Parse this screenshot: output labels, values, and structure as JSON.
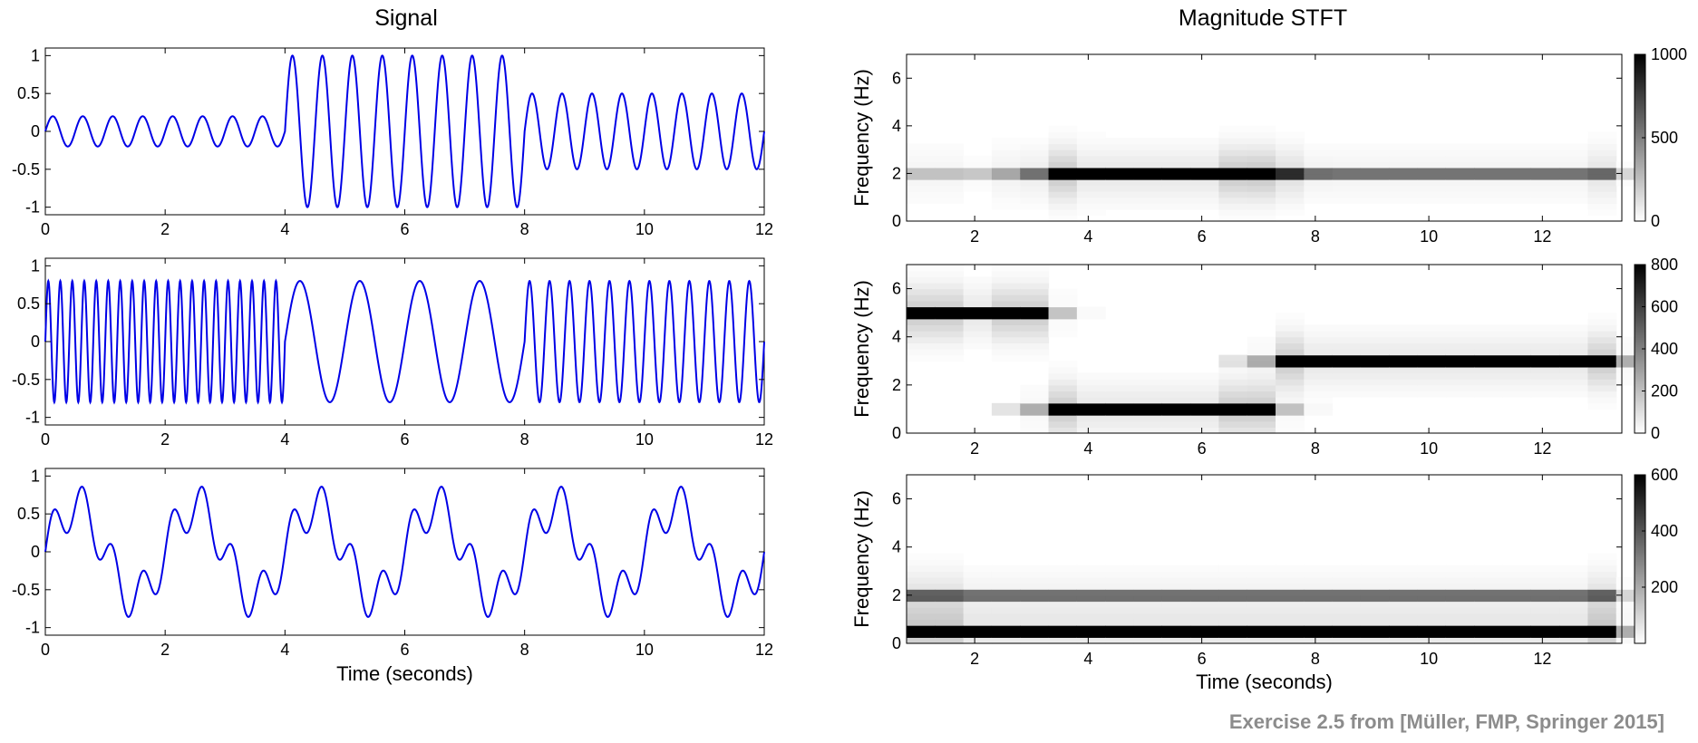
{
  "titles": {
    "signal": "Signal",
    "stft": "Magnitude STFT"
  },
  "credit": "Exercise 2.5 from [Müller, FMP, Springer 2015]",
  "colors": {
    "signal_line": "#0000e6",
    "axes": "#000000",
    "colormap": "gray_r"
  },
  "chart_data": [
    {
      "type": "line",
      "panel": "signal-1",
      "xlabel": "",
      "ylabel": "",
      "xlim": [
        0,
        12
      ],
      "ylim": [
        -1.1,
        1.1
      ],
      "xticks": [
        0,
        2,
        4,
        6,
        8,
        10,
        12
      ],
      "yticks": [
        1,
        0.5,
        0,
        -0.5,
        -1
      ],
      "xtick_labels": [
        "0",
        "2",
        "4",
        "6",
        "8",
        "10",
        "12"
      ],
      "ytick_labels": [
        "1",
        "0.5",
        "0",
        "-0.5",
        "-1"
      ],
      "segments": [
        {
          "t_start": 0,
          "t_end": 4,
          "amplitude": 0.2,
          "freq_hz": 2
        },
        {
          "t_start": 4,
          "t_end": 8,
          "amplitude": 1.0,
          "freq_hz": 2
        },
        {
          "t_start": 8,
          "t_end": 12,
          "amplitude": 0.5,
          "freq_hz": 2
        }
      ]
    },
    {
      "type": "line",
      "panel": "signal-2",
      "xlabel": "",
      "ylabel": "",
      "xlim": [
        0,
        12
      ],
      "ylim": [
        -1.1,
        1.1
      ],
      "xticks": [
        0,
        2,
        4,
        6,
        8,
        10,
        12
      ],
      "yticks": [
        1,
        0.5,
        0,
        -0.5,
        -1
      ],
      "xtick_labels": [
        "0",
        "2",
        "4",
        "6",
        "8",
        "10",
        "12"
      ],
      "ytick_labels": [
        "1",
        "0.5",
        "0",
        "-0.5",
        "-1"
      ],
      "segments": [
        {
          "t_start": 0,
          "t_end": 4,
          "amplitude": 0.8,
          "freq_hz": 5
        },
        {
          "t_start": 4,
          "t_end": 8,
          "amplitude": 0.8,
          "freq_hz": 1
        },
        {
          "t_start": 8,
          "t_end": 12,
          "amplitude": 0.8,
          "freq_hz": 3
        }
      ]
    },
    {
      "type": "line",
      "panel": "signal-3",
      "xlabel": "Time (seconds)",
      "ylabel": "",
      "xlim": [
        0,
        12
      ],
      "ylim": [
        -1.1,
        1.1
      ],
      "xticks": [
        0,
        2,
        4,
        6,
        8,
        10,
        12
      ],
      "yticks": [
        1,
        0.5,
        0,
        -0.5,
        -1
      ],
      "xtick_labels": [
        "0",
        "2",
        "4",
        "6",
        "8",
        "10",
        "12"
      ],
      "ytick_labels": [
        "1",
        "0.5",
        "0",
        "-0.5",
        "-1"
      ],
      "components": [
        {
          "amplitude": 0.6,
          "freq_hz": 0.5
        },
        {
          "amplitude": 0.3,
          "freq_hz": 2
        }
      ]
    },
    {
      "type": "heatmap",
      "panel": "stft-1",
      "xlabel": "",
      "ylabel": "Frequency (Hz)",
      "xlim": [
        0.8,
        13.4
      ],
      "ylim": [
        0,
        7
      ],
      "xticks": [
        2,
        4,
        6,
        8,
        10,
        12
      ],
      "yticks": [
        0,
        2,
        4,
        6
      ],
      "xtick_labels": [
        "2",
        "4",
        "6",
        "8",
        "10",
        "12"
      ],
      "ytick_labels": [
        "0",
        "2",
        "4",
        "6"
      ],
      "colorbar": {
        "max": 1000,
        "ticks": [
          0,
          500,
          1000
        ],
        "tick_labels": [
          "0",
          "500",
          "1000"
        ]
      },
      "peaks": [
        {
          "t_start": 0.8,
          "t_end": 3.2,
          "freq_hz": 2,
          "magnitude": 200
        },
        {
          "t_start": 3.2,
          "t_end": 7.2,
          "freq_hz": 2,
          "magnitude": 1000
        },
        {
          "t_start": 7.2,
          "t_end": 13.4,
          "freq_hz": 2,
          "magnitude": 500
        }
      ]
    },
    {
      "type": "heatmap",
      "panel": "stft-2",
      "xlabel": "",
      "ylabel": "Frequency (Hz)",
      "xlim": [
        0.8,
        13.4
      ],
      "ylim": [
        0,
        7
      ],
      "xticks": [
        2,
        4,
        6,
        8,
        10,
        12
      ],
      "yticks": [
        0,
        2,
        4,
        6
      ],
      "xtick_labels": [
        "2",
        "4",
        "6",
        "8",
        "10",
        "12"
      ],
      "ytick_labels": [
        "0",
        "2",
        "4",
        "6"
      ],
      "colorbar": {
        "max": 800,
        "ticks": [
          0,
          200,
          400,
          600,
          800
        ],
        "tick_labels": [
          "0",
          "200",
          "400",
          "600",
          "800"
        ]
      },
      "peaks": [
        {
          "t_start": 0.8,
          "t_end": 3.2,
          "freq_hz": 5,
          "magnitude": 800
        },
        {
          "t_start": 3.2,
          "t_end": 7.2,
          "freq_hz": 1,
          "magnitude": 800
        },
        {
          "t_start": 7.2,
          "t_end": 13.4,
          "freq_hz": 3,
          "magnitude": 800
        }
      ]
    },
    {
      "type": "heatmap",
      "panel": "stft-3",
      "xlabel": "Time (seconds)",
      "ylabel": "Frequency (Hz)",
      "xlim": [
        0.8,
        13.4
      ],
      "ylim": [
        0,
        7
      ],
      "xticks": [
        2,
        4,
        6,
        8,
        10,
        12
      ],
      "yticks": [
        0,
        2,
        4,
        6
      ],
      "xtick_labels": [
        "2",
        "4",
        "6",
        "8",
        "10",
        "12"
      ],
      "ytick_labels": [
        "0",
        "2",
        "4",
        "6"
      ],
      "colorbar": {
        "max": 600,
        "ticks": [
          200,
          400,
          600
        ],
        "tick_labels": [
          "200",
          "400",
          "600"
        ]
      },
      "peaks": [
        {
          "t_start": 0.8,
          "t_end": 13.4,
          "freq_hz": 0.5,
          "magnitude": 600
        },
        {
          "t_start": 0.8,
          "t_end": 13.4,
          "freq_hz": 2,
          "magnitude": 300
        }
      ]
    }
  ]
}
